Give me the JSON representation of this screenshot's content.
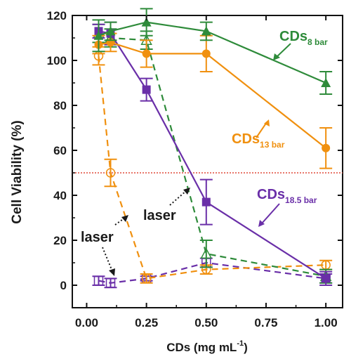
{
  "chart_data": {
    "type": "line",
    "xlabel": "CDs (mg mL",
    "xlabel_sup": "-1",
    "xlabel_end": ")",
    "ylabel": "Cell Viability (%)",
    "xlim": [
      -0.06,
      1.07
    ],
    "ylim": [
      -10,
      120
    ],
    "x_ticks": [
      0.0,
      0.25,
      0.5,
      0.75,
      1.0
    ],
    "x_tick_labels": [
      "0.00",
      "0.25",
      "0.50",
      "0.75",
      "1.00"
    ],
    "y_ticks": [
      0,
      20,
      40,
      60,
      80,
      100,
      120
    ],
    "y_tick_labels": [
      "0",
      "20",
      "40",
      "60",
      "80",
      "100",
      "120"
    ],
    "grid": false,
    "reference_line": {
      "y": 50,
      "color": "#e04a3a",
      "style": "dotted"
    },
    "series": [
      {
        "id": "cds8",
        "color": "#2e8b3a",
        "marker": "triangle",
        "line": "solid",
        "filled": true,
        "x": [
          0.05,
          0.1,
          0.25,
          0.5,
          1.0
        ],
        "y": [
          111,
          113,
          117,
          113,
          90
        ],
        "err": [
          7,
          4,
          6,
          4,
          5
        ]
      },
      {
        "id": "cds13",
        "color": "#f0900f",
        "marker": "circle",
        "line": "solid",
        "filled": true,
        "x": [
          0.05,
          0.1,
          0.25,
          0.5,
          1.0
        ],
        "y": [
          107,
          108,
          103,
          103,
          61
        ],
        "err": [
          4,
          4,
          6,
          8,
          9
        ]
      },
      {
        "id": "cds18",
        "color": "#6a2fa8",
        "marker": "square",
        "line": "solid",
        "filled": true,
        "x": [
          0.05,
          0.1,
          0.25,
          0.5,
          1.0
        ],
        "y": [
          113,
          112,
          87,
          37,
          3
        ],
        "err": [
          3,
          5,
          5,
          10,
          3
        ]
      },
      {
        "id": "cds8-laser",
        "color": "#2e8b3a",
        "marker": "triangle",
        "line": "dashed",
        "filled": false,
        "x": [
          0.05,
          0.1,
          0.25,
          0.5,
          1.0
        ],
        "y": [
          112,
          110,
          109,
          14,
          4
        ],
        "err": [
          4,
          4,
          4,
          6,
          3
        ]
      },
      {
        "id": "cds13-laser",
        "color": "#f0900f",
        "marker": "circle",
        "line": "dashed",
        "filled": false,
        "x": [
          0.05,
          0.1,
          0.25,
          0.5,
          1.0
        ],
        "y": [
          102,
          50,
          3,
          7,
          9
        ],
        "err": [
          4,
          6,
          2,
          2,
          2
        ]
      },
      {
        "id": "cds18-laser",
        "color": "#6a2fa8",
        "marker": "square",
        "line": "dashed",
        "filled": false,
        "x": [
          0.05,
          0.1,
          0.25,
          0.5,
          1.0
        ],
        "y": [
          2,
          1,
          3,
          10,
          3
        ],
        "err": [
          2,
          2,
          1,
          2,
          2
        ]
      }
    ],
    "labels": {
      "cds8": {
        "main": "CDs",
        "sub": "8 bar",
        "color": "#2e8b3a"
      },
      "cds13": {
        "main": "CDs",
        "sub": "13 bar",
        "color": "#f0900f"
      },
      "cds18": {
        "main": "CDs",
        "sub": "18.5 bar",
        "color": "#6a2fa8"
      },
      "laser": "laser"
    }
  }
}
